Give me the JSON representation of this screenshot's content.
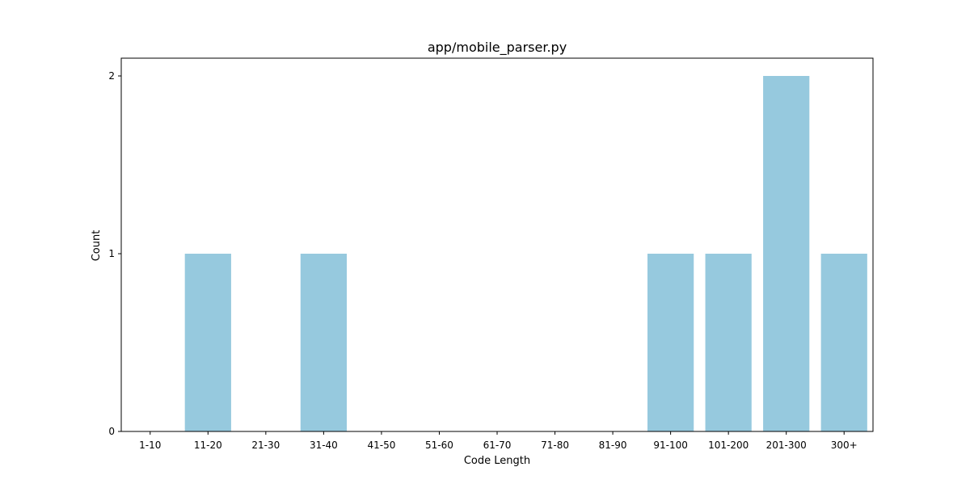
{
  "chart_data": {
    "type": "bar",
    "title": "app/mobile_parser.py",
    "xlabel": "Code Length",
    "ylabel": "Count",
    "categories": [
      "1-10",
      "11-20",
      "21-30",
      "31-40",
      "41-50",
      "51-60",
      "61-70",
      "71-80",
      "81-90",
      "91-100",
      "101-200",
      "201-300",
      "300+"
    ],
    "values": [
      0,
      1,
      0,
      1,
      0,
      0,
      0,
      0,
      0,
      1,
      1,
      2,
      1
    ],
    "ylim": [
      0,
      2.1
    ],
    "yticks": [
      0,
      1,
      2
    ],
    "bar_color": "#96c9de",
    "grid": false,
    "legend": false
  }
}
